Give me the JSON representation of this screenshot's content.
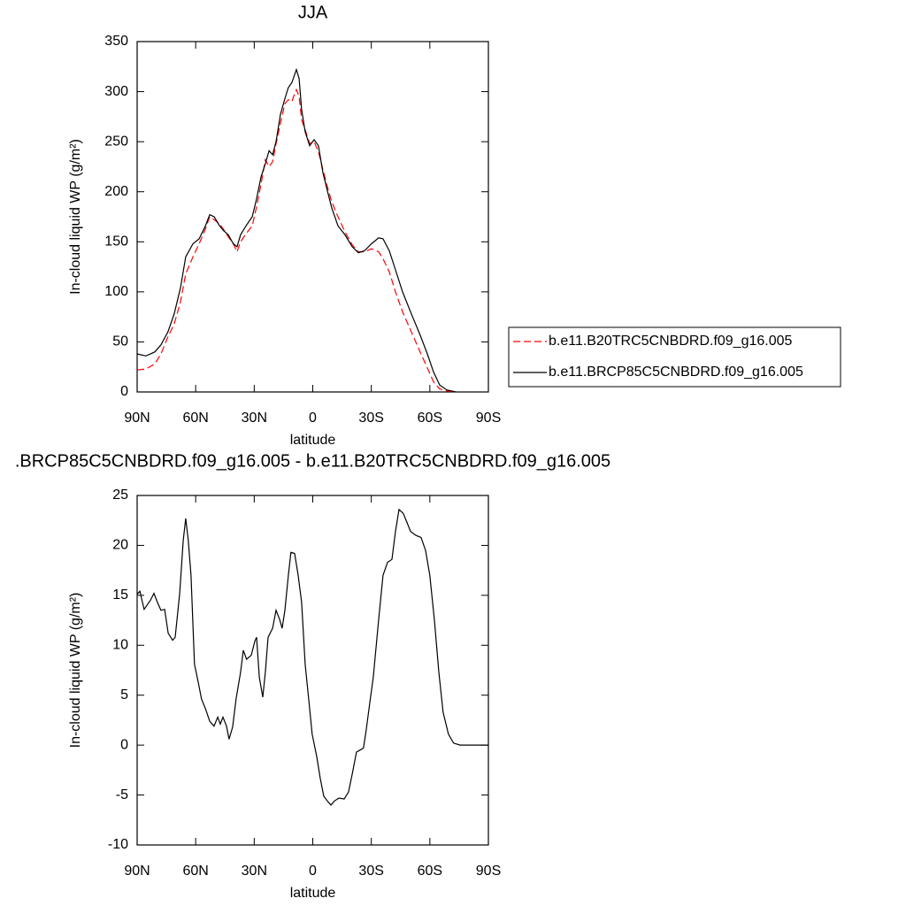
{
  "chart_data": [
    {
      "type": "line",
      "title": "JJA",
      "xlabel": "latitude",
      "ylabel": "In-cloud liquid WP (g/m²)",
      "xlim": [
        90,
        -90
      ],
      "xticks": [
        {
          "value": 90,
          "label": "90N"
        },
        {
          "value": 60,
          "label": "60N"
        },
        {
          "value": 30,
          "label": "30N"
        },
        0,
        {
          "value": -30,
          "label": "30S"
        },
        {
          "value": -60,
          "label": "60S"
        },
        {
          "value": -90,
          "label": "90S"
        }
      ],
      "ylim": [
        0,
        350
      ],
      "yticks": [
        0,
        50,
        100,
        150,
        200,
        250,
        300,
        350
      ],
      "legend": "right",
      "x": [
        90,
        85.5,
        80.9,
        77.8,
        74.2,
        71,
        67.8,
        65.1,
        61.4,
        58.2,
        55,
        52.8,
        50.5,
        47.8,
        45.6,
        43.3,
        40.7,
        38.8,
        37,
        34.2,
        31,
        28.8,
        26.5,
        24.3,
        22.4,
        20.6,
        18.8,
        16.6,
        14.3,
        12.5,
        10.7,
        9.3,
        8.4,
        7,
        5.7,
        3.9,
        1.6,
        -0.7,
        -2.9,
        -5.2,
        -7.5,
        -9.7,
        -12.9,
        -16.5,
        -20.2,
        -23.4,
        -26.5,
        -30.1,
        -33.8,
        -36,
        -39.2,
        -42.4,
        -46,
        -50.5,
        -55,
        -58.7,
        -61.9,
        -65,
        -68.7,
        -73.3
      ],
      "series": [
        {
          "name": "b.e11.B20TRC5CNBDRD.f09_g16.005",
          "color": "#ff0000",
          "linestyle": "dashed",
          "values": [
            22,
            23,
            28,
            38,
            55,
            68,
            90,
            118,
            135,
            148,
            163,
            175,
            172,
            168,
            162,
            155,
            148,
            140,
            150,
            158,
            166,
            185,
            208,
            232,
            225,
            230,
            248,
            268,
            288,
            292,
            290,
            298,
            302,
            295,
            272,
            262,
            248,
            250,
            240,
            222,
            205,
            190,
            175,
            160,
            147,
            140,
            140,
            143,
            140,
            133,
            120,
            100,
            80,
            60,
            40,
            24,
            10,
            3,
            1,
            0
          ]
        },
        {
          "name": "b.e11.BRCP85C5CNBDRD.f09_g16.005",
          "color": "#000000",
          "linestyle": "solid",
          "values": [
            38,
            36,
            40,
            47,
            60,
            78,
            104,
            135,
            148,
            153,
            166,
            177,
            175,
            166,
            161,
            157,
            148,
            145,
            157,
            166,
            175,
            193,
            215,
            228,
            241,
            237,
            250,
            277,
            293,
            304,
            309,
            317,
            322,
            313,
            282,
            260,
            246,
            252,
            246,
            219,
            201,
            184,
            166,
            157,
            145,
            139,
            141,
            148,
            154,
            153,
            141,
            122,
            100,
            78,
            57,
            38,
            20,
            7,
            2,
            0
          ]
        }
      ]
    },
    {
      "type": "line",
      "title": ".BRCP85C5CNBDRD.f09_g16.005 - b.e11.B20TRC5CNBDRD.f09_g16.005",
      "xlabel": "latitude",
      "ylabel": "In-cloud liquid WP (g/m²)",
      "xlim": [
        90,
        -90
      ],
      "xticks": [
        {
          "value": 90,
          "label": "90N"
        },
        {
          "value": 60,
          "label": "60N"
        },
        {
          "value": 30,
          "label": "30N"
        },
        0,
        {
          "value": -30,
          "label": "30S"
        },
        {
          "value": -60,
          "label": "60S"
        },
        {
          "value": -90,
          "label": "90S"
        }
      ],
      "ylim": [
        -10,
        25
      ],
      "yticks": [
        -10,
        -5,
        0,
        5,
        10,
        15,
        20,
        25
      ],
      "x": [
        90,
        88.6,
        86.4,
        83.2,
        81.4,
        79.6,
        77.8,
        75.9,
        74.1,
        71.8,
        70.5,
        68.2,
        66.4,
        65.1,
        63.8,
        62.4,
        60.6,
        58.8,
        57,
        55.1,
        52.8,
        50.6,
        48.7,
        47.4,
        46,
        44.2,
        42.9,
        41.1,
        39.3,
        37,
        35.6,
        33.9,
        31.5,
        29.7,
        28.8,
        27.4,
        25.6,
        24.3,
        22.9,
        20.6,
        18.8,
        17,
        15.7,
        14.3,
        12.5,
        11.2,
        9.3,
        7.5,
        5.7,
        3.9,
        2.1,
        0.3,
        -2,
        -3.8,
        -5.6,
        -7.5,
        -9.3,
        -11.1,
        -13.4,
        -16.1,
        -18.3,
        -20.2,
        -22.4,
        -24.2,
        -26,
        -27.4,
        -29.2,
        -31,
        -33.8,
        -36,
        -38.3,
        -40.6,
        -42.4,
        -44.2,
        -46.4,
        -48.3,
        -50.1,
        -52.8,
        -55.5,
        -57.8,
        -60,
        -62.3,
        -64.6,
        -66.8,
        -69.5,
        -72.2,
        -75.5,
        -90
      ],
      "series": [
        {
          "color": "#000000",
          "linestyle": "solid",
          "values": [
            15.1,
            15.4,
            13.6,
            14.5,
            15.2,
            14.3,
            13.5,
            13.6,
            11.2,
            10.5,
            10.8,
            15.2,
            20.5,
            22.7,
            20.5,
            17,
            8.1,
            6.4,
            4.6,
            3.7,
            2.4,
            1.9,
            2.8,
            2.1,
            2.8,
            1.9,
            0.6,
            1.8,
            4.6,
            7.3,
            9.5,
            8.6,
            9.0,
            10.4,
            10.8,
            6.8,
            4.8,
            7.3,
            10.8,
            11.7,
            13.5,
            12.6,
            11.7,
            13.5,
            17.0,
            19.3,
            19.2,
            17.0,
            14.3,
            8.1,
            4.6,
            1.1,
            -1.1,
            -3.3,
            -5.1,
            -5.6,
            -6.0,
            -5.6,
            -5.3,
            -5.4,
            -4.7,
            -2.9,
            -0.7,
            -0.5,
            -0.3,
            1.5,
            4.2,
            6.8,
            12.6,
            17.0,
            18.3,
            18.6,
            21.4,
            23.6,
            23.2,
            22.3,
            21.4,
            21.0,
            20.8,
            19.5,
            17.0,
            12.6,
            7.3,
            3.3,
            1.1,
            0.2,
            0,
            0
          ]
        }
      ]
    }
  ]
}
